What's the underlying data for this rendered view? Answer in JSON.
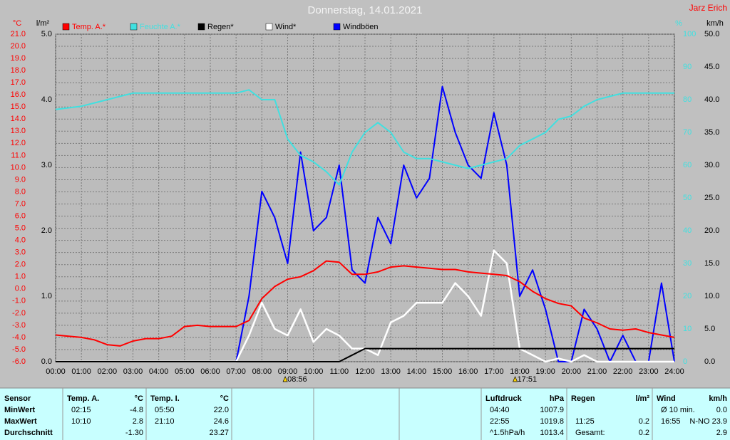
{
  "header": {
    "title": "Donnerstag, 14.01.2021",
    "author": "Jarz Erich"
  },
  "chart_data": {
    "type": "line",
    "xlim": [
      0,
      24
    ],
    "xticks": [
      {
        "value": 0,
        "label": "00:00"
      },
      {
        "value": 1,
        "label": "01:00"
      },
      {
        "value": 2,
        "label": "02:00"
      },
      {
        "value": 3,
        "label": "03:00"
      },
      {
        "value": 4,
        "label": "04:00"
      },
      {
        "value": 5,
        "label": "05:00"
      },
      {
        "value": 6,
        "label": "06:00"
      },
      {
        "value": 7,
        "label": "07:00"
      },
      {
        "value": 8,
        "label": "08:00"
      },
      {
        "value": 9,
        "label": "09:00"
      },
      {
        "value": 10,
        "label": "10:00"
      },
      {
        "value": 11,
        "label": "11:00"
      },
      {
        "value": 12,
        "label": "12:00"
      },
      {
        "value": 13,
        "label": "13:00"
      },
      {
        "value": 14,
        "label": "14:00"
      },
      {
        "value": 15,
        "label": "15:00"
      },
      {
        "value": 16,
        "label": "16:00"
      },
      {
        "value": 17,
        "label": "17:00"
      },
      {
        "value": 18,
        "label": "18:00"
      },
      {
        "value": 19,
        "label": "19:00"
      },
      {
        "value": 20,
        "label": "20:00"
      },
      {
        "value": 21,
        "label": "21:00"
      },
      {
        "value": 22,
        "label": "22:00"
      },
      {
        "value": 23,
        "label": "23:00"
      },
      {
        "value": 24,
        "label": "24:00"
      }
    ],
    "ylabel": "°C",
    "ylim": [
      -6,
      21
    ],
    "yticks": [
      {
        "value": -6,
        "label": "-6.0"
      },
      {
        "value": -5,
        "label": "-5.0"
      },
      {
        "value": -4,
        "label": "-4.0"
      },
      {
        "value": -3,
        "label": "-3.0"
      },
      {
        "value": -2,
        "label": "-2.0"
      },
      {
        "value": -1,
        "label": "-1.0"
      },
      {
        "value": 0,
        "label": "0.0"
      },
      {
        "value": 1,
        "label": "1.0"
      },
      {
        "value": 2,
        "label": "2.0"
      },
      {
        "value": 3,
        "label": "3.0"
      },
      {
        "value": 4,
        "label": "4.0"
      },
      {
        "value": 5,
        "label": "5.0"
      },
      {
        "value": 6,
        "label": "6.0"
      },
      {
        "value": 7,
        "label": "7.0"
      },
      {
        "value": 8,
        "label": "8.0"
      },
      {
        "value": 9,
        "label": "9.0"
      },
      {
        "value": 10,
        "label": "10.0"
      },
      {
        "value": 11,
        "label": "11.0"
      },
      {
        "value": 12,
        "label": "12.0"
      },
      {
        "value": 13,
        "label": "13.0"
      },
      {
        "value": 14,
        "label": "14.0"
      },
      {
        "value": 15,
        "label": "15.0"
      },
      {
        "value": 16,
        "label": "16.0"
      },
      {
        "value": 17,
        "label": "17.0"
      },
      {
        "value": 18,
        "label": "18.0"
      },
      {
        "value": 19,
        "label": "19.0"
      },
      {
        "value": 20,
        "label": "20.0"
      },
      {
        "value": 21,
        "label": "21.0"
      }
    ],
    "y2label": "l/m²",
    "y2lim": [
      0,
      5
    ],
    "y2ticks": [
      {
        "value": 0,
        "label": "0.0"
      },
      {
        "value": 1,
        "label": "1.0"
      },
      {
        "value": 2,
        "label": "2.0"
      },
      {
        "value": 3,
        "label": "3.0"
      },
      {
        "value": 4,
        "label": "4.0"
      },
      {
        "value": 5,
        "label": "5.0"
      }
    ],
    "y3label": "%",
    "y3lim": [
      0,
      100
    ],
    "y3ticks": [
      0,
      10,
      20,
      30,
      40,
      50,
      60,
      70,
      80,
      90,
      100
    ],
    "y4label": "km/h",
    "y4lim": [
      0,
      50
    ],
    "y4ticks": [
      {
        "value": 0,
        "label": "0.0"
      },
      {
        "value": 5,
        "label": "5.0"
      },
      {
        "value": 10,
        "label": "10.0"
      },
      {
        "value": 15,
        "label": "15.0"
      },
      {
        "value": 20,
        "label": "20.0"
      },
      {
        "value": 25,
        "label": "25.0"
      },
      {
        "value": 30,
        "label": "30.0"
      },
      {
        "value": 35,
        "label": "35.0"
      },
      {
        "value": 40,
        "label": "40.0"
      },
      {
        "value": 45,
        "label": "45.0"
      },
      {
        "value": 50,
        "label": "50.0"
      }
    ],
    "grid": true,
    "x": [
      0,
      0.5,
      1,
      1.5,
      2,
      2.5,
      3,
      3.5,
      4,
      4.5,
      5,
      5.5,
      6,
      6.5,
      7,
      7.5,
      8,
      8.5,
      9,
      9.5,
      10,
      10.5,
      11,
      11.5,
      12,
      12.5,
      13,
      13.5,
      14,
      14.5,
      15,
      15.5,
      16,
      16.5,
      17,
      17.5,
      18,
      18.5,
      19,
      19.5,
      20,
      20.5,
      21,
      21.5,
      22,
      22.5,
      23,
      23.5,
      24
    ],
    "series": [
      {
        "name": "Temp. A.*",
        "color": "#ff0000",
        "axis": "y",
        "values": [
          -3.8,
          -3.9,
          -4.0,
          -4.2,
          -4.6,
          -4.7,
          -4.3,
          -4.1,
          -4.1,
          -3.9,
          -3.1,
          -3.0,
          -3.1,
          -3.1,
          -3.1,
          -2.6,
          -0.8,
          0.2,
          0.8,
          1.0,
          1.5,
          2.3,
          2.2,
          1.2,
          1.2,
          1.4,
          1.8,
          1.9,
          1.8,
          1.7,
          1.6,
          1.6,
          1.4,
          1.3,
          1.2,
          1.1,
          0.6,
          -0.2,
          -0.8,
          -1.2,
          -1.4,
          -2.4,
          -2.8,
          -3.3,
          -3.4,
          -3.3,
          -3.6,
          -3.8,
          -4.0
        ]
      },
      {
        "name": "Feuchte A.*",
        "color": "#40e0e0",
        "axis": "y3",
        "values": [
          77,
          77.5,
          78,
          79,
          80,
          81,
          82,
          82,
          82,
          82,
          82,
          82,
          82,
          82,
          82,
          83,
          80,
          80,
          68,
          63,
          61,
          58,
          54,
          64,
          70,
          73,
          70,
          64,
          62,
          62,
          61,
          60,
          59,
          60,
          61,
          62,
          66,
          68,
          70,
          74,
          75,
          78,
          80,
          81,
          82,
          82,
          82,
          82,
          82
        ]
      },
      {
        "name": "Regen*",
        "color": "#000000",
        "axis": "y2",
        "values": [
          0,
          0,
          0,
          0,
          0,
          0,
          0,
          0,
          0,
          0,
          0,
          0,
          0,
          0,
          0,
          0,
          0,
          0,
          0,
          0,
          0,
          0,
          0,
          0.1,
          0.2,
          0.2,
          0.2,
          0.2,
          0.2,
          0.2,
          0.2,
          0.2,
          0.2,
          0.2,
          0.2,
          0.2,
          0.2,
          0.2,
          0.2,
          0.2,
          0.2,
          0.2,
          0.2,
          0.2,
          0.2,
          0.2,
          0.2,
          0.2,
          0.2
        ]
      },
      {
        "name": "Wind*",
        "color": "#ffffff",
        "axis": "y4",
        "values": [
          0,
          0,
          0,
          0,
          0,
          0,
          0,
          0,
          0,
          0,
          0,
          0,
          0,
          0,
          0,
          4,
          9,
          5,
          4,
          8,
          3,
          5,
          4,
          2,
          2,
          1,
          6,
          7,
          9,
          9,
          9,
          12,
          10,
          7,
          17,
          15,
          2,
          1,
          0,
          0.5,
          0,
          1,
          0,
          0,
          0,
          0,
          0,
          0,
          0
        ]
      },
      {
        "name": "Windböen",
        "color": "#0000ff",
        "axis": "y4",
        "values": [
          0,
          0,
          0,
          0,
          0,
          0,
          0,
          0,
          0,
          0,
          0,
          0,
          0,
          0,
          0,
          10,
          26,
          22,
          15,
          32,
          20,
          22,
          30,
          14,
          12,
          22,
          18,
          30,
          25,
          28,
          42,
          35,
          30,
          28,
          38,
          30,
          10,
          14,
          8,
          0,
          0,
          8,
          5,
          0,
          4,
          0,
          0,
          12,
          0
        ]
      }
    ],
    "annotations": [
      {
        "x": 8.9333,
        "label": "08:56"
      },
      {
        "x": 17.85,
        "label": "17:51"
      }
    ]
  },
  "stats": {
    "row_labels": [
      "Sensor",
      "MinWert",
      "MaxWert",
      "Durchschnitt"
    ],
    "panels": [
      {
        "name": "Temp. A.",
        "unit": "°C",
        "rows": [
          {
            "time": "02:15",
            "value": "-4.8"
          },
          {
            "time": "10:10",
            "value": "2.8"
          },
          {
            "value": "-1.30"
          }
        ]
      },
      {
        "name": "Temp. I.",
        "unit": "°C",
        "rows": [
          {
            "time": "05:50",
            "value": "22.0"
          },
          {
            "time": "21:10",
            "value": "24.6"
          },
          {
            "value": "23.27"
          }
        ]
      },
      {
        "name": "Luftdruck",
        "unit": "hPa",
        "rows": [
          {
            "time": "04:40",
            "value": "1007.9"
          },
          {
            "time": "22:55",
            "value": "1019.8"
          },
          {
            "time": "^1.5hPa/h",
            "value": "1013.4"
          }
        ]
      },
      {
        "name": "Regen",
        "unit": "l/m²",
        "rows": [
          null,
          {
            "time": "11:25",
            "value": "0.2"
          },
          {
            "time": "Gesamt:",
            "value": "0.2"
          }
        ]
      },
      {
        "name": "Wind",
        "unit": "km/h",
        "rows": [
          {
            "time": "Ø 10 min.",
            "value": "0.0"
          },
          {
            "time": "16:55",
            "value": "N-NO 23.9"
          },
          {
            "value": "2.9"
          }
        ]
      }
    ]
  }
}
